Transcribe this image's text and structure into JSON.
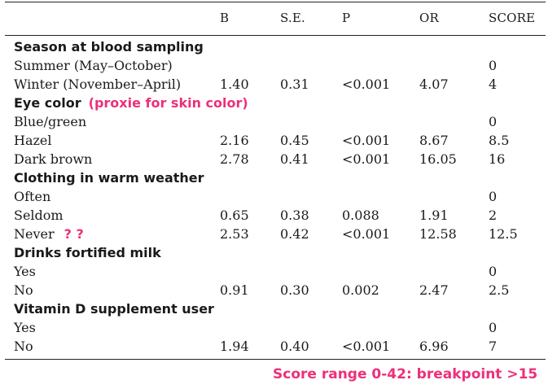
{
  "columns": {
    "b": "B",
    "se": "S.E.",
    "p": "P",
    "or": "OR",
    "score": "SCORE"
  },
  "sections": [
    {
      "title": "Season at blood sampling",
      "note": "",
      "rows": [
        {
          "label": "Summer (May–October)",
          "note": "",
          "b": "",
          "se": "",
          "p": "",
          "or": "",
          "score": "0"
        },
        {
          "label": "Winter (November–April)",
          "note": "",
          "b": "1.40",
          "se": "0.31",
          "p": "<0.001",
          "or": "4.07",
          "score": "4"
        }
      ]
    },
    {
      "title": "Eye color",
      "note": "(proxie for skin color)",
      "rows": [
        {
          "label": "Blue/green",
          "note": "",
          "b": "",
          "se": "",
          "p": "",
          "or": "",
          "score": "0"
        },
        {
          "label": "Hazel",
          "note": "",
          "b": "2.16",
          "se": "0.45",
          "p": "<0.001",
          "or": "8.67",
          "score": "8.5"
        },
        {
          "label": "Dark brown",
          "note": "",
          "b": "2.78",
          "se": "0.41",
          "p": "<0.001",
          "or": "16.05",
          "score": "16"
        }
      ]
    },
    {
      "title": "Clothing in warm weather",
      "note": "",
      "rows": [
        {
          "label": "Often",
          "note": "",
          "b": "",
          "se": "",
          "p": "",
          "or": "",
          "score": "0"
        },
        {
          "label": "Seldom",
          "note": "",
          "b": "0.65",
          "se": "0.38",
          "p": "0.088",
          "or": "1.91",
          "score": "2"
        },
        {
          "label": "Never",
          "note": "? ?",
          "b": "2.53",
          "se": "0.42",
          "p": "<0.001",
          "or": "12.58",
          "score": "12.5"
        }
      ]
    },
    {
      "title": "Drinks fortified milk",
      "note": "",
      "rows": [
        {
          "label": "Yes",
          "note": "",
          "b": "",
          "se": "",
          "p": "",
          "or": "",
          "score": "0"
        },
        {
          "label": "No",
          "note": "",
          "b": "0.91",
          "se": "0.30",
          "p": "0.002",
          "or": "2.47",
          "score": "2.5"
        }
      ]
    },
    {
      "title": "Vitamin D supplement user",
      "note": "",
      "rows": [
        {
          "label": "Yes",
          "note": "",
          "b": "",
          "se": "",
          "p": "",
          "or": "",
          "score": "0"
        },
        {
          "label": "No",
          "note": "",
          "b": "1.94",
          "se": "0.40",
          "p": "<0.001",
          "or": "6.96",
          "score": "7"
        }
      ]
    }
  ],
  "footer_note": "Score range 0-42: breakpoint >15",
  "colors": {
    "annotation": "#ee2f7a",
    "rule": "#222222"
  }
}
